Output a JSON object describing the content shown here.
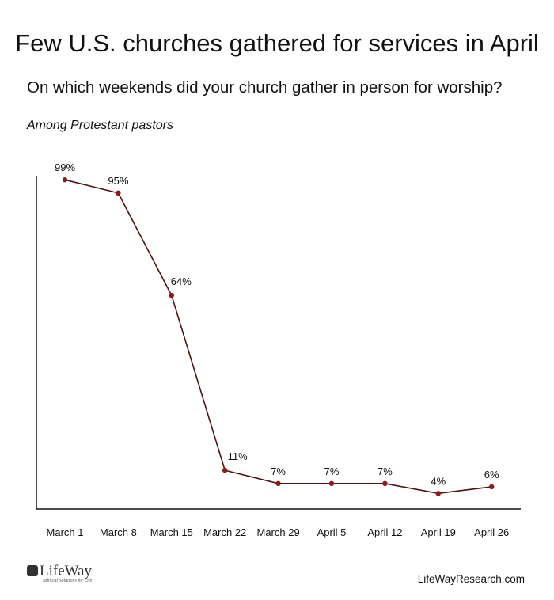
{
  "header": {
    "title": "Few U.S. churches gathered for services in April",
    "subtitle": "On which weekends did your church gather in person for worship?",
    "note": "Among Protestant pastors"
  },
  "footer": {
    "logo_text": "LifeWay",
    "logo_tagline": "Biblical Solutions for Life",
    "website": "LifeWayResearch.com"
  },
  "colors": {
    "line": "#4a1414",
    "point": "#8b1a1a",
    "axis": "#111111"
  },
  "chart_data": {
    "type": "line",
    "title": "Few U.S. churches gathered for services in April",
    "subtitle": "On which weekends did your church gather in person for worship?",
    "xlabel": "",
    "ylabel": "",
    "categories": [
      "March 1",
      "March 8",
      "March 15",
      "March 22",
      "March 29",
      "April 5",
      "April 12",
      "April 19",
      "April 26"
    ],
    "series": [
      {
        "values": [
          99,
          95,
          64,
          11,
          7,
          7,
          7,
          4,
          6
        ],
        "labels": [
          "99%",
          "95%",
          "64%",
          "11%",
          "7%",
          "7%",
          "7%",
          "4%",
          "6%"
        ]
      }
    ],
    "ylim": [
      0,
      100
    ],
    "grid": false,
    "legend": "none"
  }
}
